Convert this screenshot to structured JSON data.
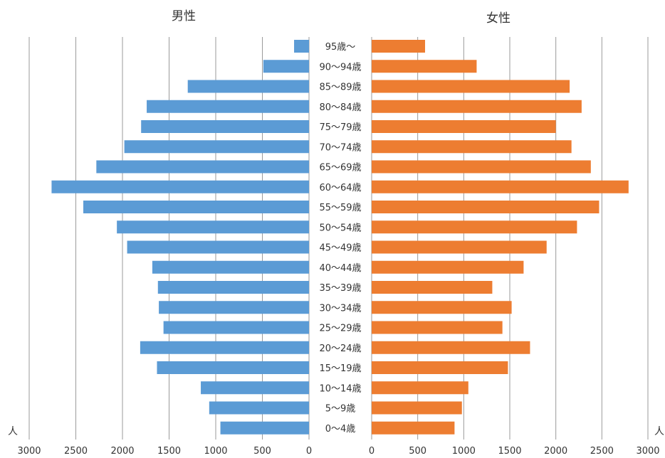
{
  "chart_data": {
    "type": "bar",
    "subtype": "population-pyramid",
    "orientation": "horizontal",
    "title": "",
    "categories": [
      "95歳～",
      "90～94歳",
      "85～89歳",
      "80～84歳",
      "75～79歳",
      "70～74歳",
      "65～69歳",
      "60～64歳",
      "55～59歳",
      "50～54歳",
      "45～49歳",
      "40～44歳",
      "35～39歳",
      "30～34歳",
      "25～29歳",
      "20～24歳",
      "15～19歳",
      "10～14歳",
      "5～9歳",
      "0～4歳"
    ],
    "series": [
      {
        "name": "男性",
        "side": "left",
        "color": "#5b9bd5",
        "values": [
          160,
          490,
          1300,
          1740,
          1800,
          1980,
          2280,
          2760,
          2420,
          2060,
          1950,
          1680,
          1620,
          1610,
          1560,
          1810,
          1630,
          1160,
          1070,
          950
        ]
      },
      {
        "name": "女性",
        "side": "right",
        "color": "#ed7d31",
        "values": [
          580,
          1140,
          2150,
          2280,
          2000,
          2170,
          2380,
          2790,
          2470,
          2230,
          1900,
          1650,
          1310,
          1520,
          1420,
          1720,
          1480,
          1050,
          980,
          900
        ]
      }
    ],
    "xlim": [
      0,
      3000
    ],
    "x_ticks": [
      "3000",
      "2500",
      "2000",
      "1500",
      "1000",
      "500",
      "0"
    ],
    "x_ticks_right": [
      "0",
      "500",
      "1000",
      "1500",
      "2000",
      "2500",
      "3000"
    ],
    "unit_label_left": "人",
    "unit_label_right": "人",
    "grid": true,
    "legend": "none"
  }
}
